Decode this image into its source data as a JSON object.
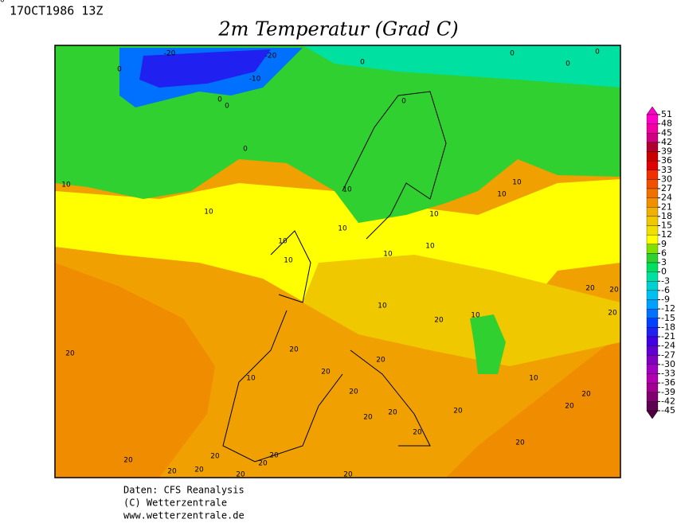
{
  "header": {
    "timestamp": "17OCT1986 13Z",
    "title": "2m Temperatur (Grad C)"
  },
  "map": {
    "contour_labels": [
      0,
      -20,
      -20,
      -10,
      0,
      0,
      0,
      0,
      0,
      0,
      0,
      0,
      10,
      10,
      10,
      10,
      10,
      10,
      10,
      10,
      10,
      10,
      10,
      10,
      10,
      10,
      10,
      20,
      20,
      20,
      20,
      20,
      20,
      20,
      20,
      20,
      20,
      20,
      20,
      20,
      20,
      20,
      20,
      20,
      20,
      20,
      20,
      20,
      20,
      20,
      20,
      20
    ]
  },
  "colorbar": {
    "ticks": [
      51,
      48,
      45,
      42,
      39,
      36,
      33,
      30,
      27,
      24,
      21,
      18,
      15,
      12,
      9,
      6,
      3,
      0,
      -3,
      -6,
      -9,
      -12,
      -15,
      -18,
      -21,
      -24,
      -27,
      -30,
      -33,
      -36,
      -39,
      -42,
      -45
    ],
    "colors": [
      "#ff00c8",
      "#f000a0",
      "#d00080",
      "#b00030",
      "#c80000",
      "#e00000",
      "#f03000",
      "#f05000",
      "#f07000",
      "#f09000",
      "#f0b000",
      "#f0c800",
      "#f0e000",
      "#ffff00",
      "#80e000",
      "#30d030",
      "#00e060",
      "#00e0a0",
      "#00d0d0",
      "#00c0f0",
      "#00a0ff",
      "#0070ff",
      "#0040ff",
      "#2020f0",
      "#4000e0",
      "#6000d0",
      "#8000c0",
      "#a000c0",
      "#b000b0",
      "#a00090",
      "#800070",
      "#600050"
    ],
    "over_color": "#ff00c8",
    "under_color": "#500040"
  },
  "footer": {
    "source": "Daten: CFS Reanalysis",
    "copyright": "(C) Wetterzentrale",
    "url": "www.wetterzentrale.de"
  }
}
